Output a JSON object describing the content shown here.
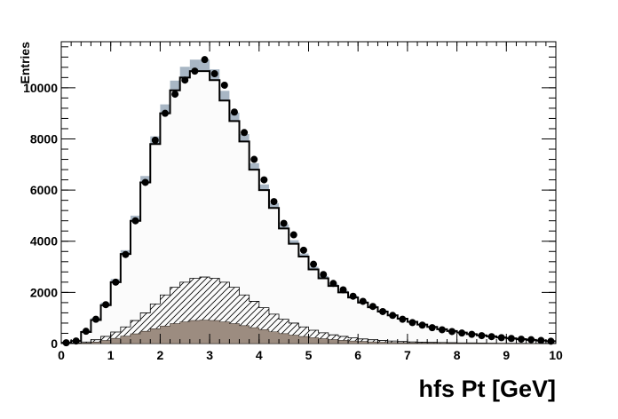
{
  "chart_data": {
    "type": "histogram",
    "xlabel": "hfs Pt [GeV]",
    "ylabel": "Entries",
    "xlim": [
      0,
      10
    ],
    "ylim": [
      0,
      11800
    ],
    "x_ticks": [
      0,
      1,
      2,
      3,
      4,
      5,
      6,
      7,
      8,
      9,
      10
    ],
    "y_ticks": [
      0,
      2000,
      4000,
      6000,
      8000,
      10000
    ],
    "bin_edges": [
      0,
      0.2,
      0.4,
      0.6,
      0.8,
      1.0,
      1.2,
      1.4,
      1.6,
      1.8,
      2.0,
      2.2,
      2.4,
      2.6,
      2.8,
      3.0,
      3.2,
      3.4,
      3.6,
      3.8,
      4.0,
      4.2,
      4.4,
      4.6,
      4.8,
      5.0,
      5.2,
      5.4,
      5.6,
      5.8,
      6.0,
      6.2,
      6.4,
      6.6,
      6.8,
      7.0,
      7.2,
      7.4,
      7.6,
      7.8,
      8.0,
      8.2,
      8.4,
      8.6,
      8.8,
      9.0,
      9.2,
      9.4,
      9.6,
      9.8,
      10.0
    ],
    "colors": {
      "total_fill": "#fbfbfb",
      "uncertainty_band": "#a8b6c4",
      "component_dark": "#9c8c80",
      "component_hatched": "#000000",
      "data_points": "#000000"
    },
    "series": [
      {
        "kind": "data_points",
        "values": [
          30,
          100,
          480,
          950,
          1520,
          2400,
          3480,
          4800,
          6300,
          7950,
          9000,
          9750,
          10300,
          10650,
          11100,
          10550,
          10100,
          9050,
          8250,
          7200,
          6400,
          5550,
          4700,
          4250,
          3650,
          3100,
          2700,
          2350,
          2100,
          1850,
          1650,
          1450,
          1250,
          1100,
          950,
          820,
          720,
          620,
          540,
          470,
          410,
          360,
          310,
          270,
          230,
          200,
          170,
          150,
          120,
          90
        ]
      },
      {
        "kind": "total_mc_histogram",
        "values": [
          30,
          100,
          450,
          920,
          1500,
          2400,
          3500,
          4800,
          6300,
          7800,
          9000,
          9900,
          10400,
          10650,
          10650,
          10300,
          9500,
          8700,
          7900,
          6800,
          6000,
          5300,
          4500,
          3900,
          3400,
          2900,
          2550,
          2250,
          2000,
          1800,
          1600,
          1420,
          1250,
          1100,
          970,
          850,
          740,
          650,
          560,
          490,
          430,
          370,
          320,
          280,
          240,
          205,
          175,
          145,
          115,
          90
        ]
      },
      {
        "kind": "uncertainty_band_half_width",
        "values": [
          15,
          30,
          60,
          80,
          100,
          120,
          150,
          200,
          250,
          300,
          350,
          380,
          420,
          450,
          450,
          420,
          380,
          330,
          290,
          250,
          220,
          190,
          160,
          140,
          120,
          100,
          90,
          80,
          70,
          60,
          55,
          50,
          45,
          40,
          35,
          30,
          28,
          25,
          22,
          20,
          18,
          16,
          15,
          13,
          12,
          11,
          10,
          9,
          8,
          7
        ]
      },
      {
        "kind": "hatched_component",
        "values": [
          5,
          20,
          60,
          150,
          280,
          450,
          650,
          900,
          1200,
          1550,
          1900,
          2200,
          2400,
          2550,
          2600,
          2550,
          2400,
          2200,
          1900,
          1650,
          1400,
          1150,
          950,
          800,
          650,
          520,
          420,
          340,
          280,
          220,
          180,
          150,
          120,
          100,
          80,
          65,
          55,
          45,
          38,
          32,
          27,
          23,
          20,
          17,
          14,
          12,
          10,
          8,
          7,
          6
        ]
      },
      {
        "kind": "dark_component",
        "values": [
          2,
          8,
          25,
          60,
          120,
          200,
          290,
          380,
          480,
          580,
          680,
          780,
          850,
          900,
          920,
          900,
          850,
          780,
          700,
          620,
          540,
          460,
          390,
          330,
          275,
          230,
          190,
          155,
          125,
          100,
          80,
          65,
          52,
          42,
          34,
          27,
          22,
          18,
          15,
          12,
          10,
          8,
          7,
          6,
          5,
          4,
          3,
          3,
          2,
          2
        ]
      }
    ]
  }
}
